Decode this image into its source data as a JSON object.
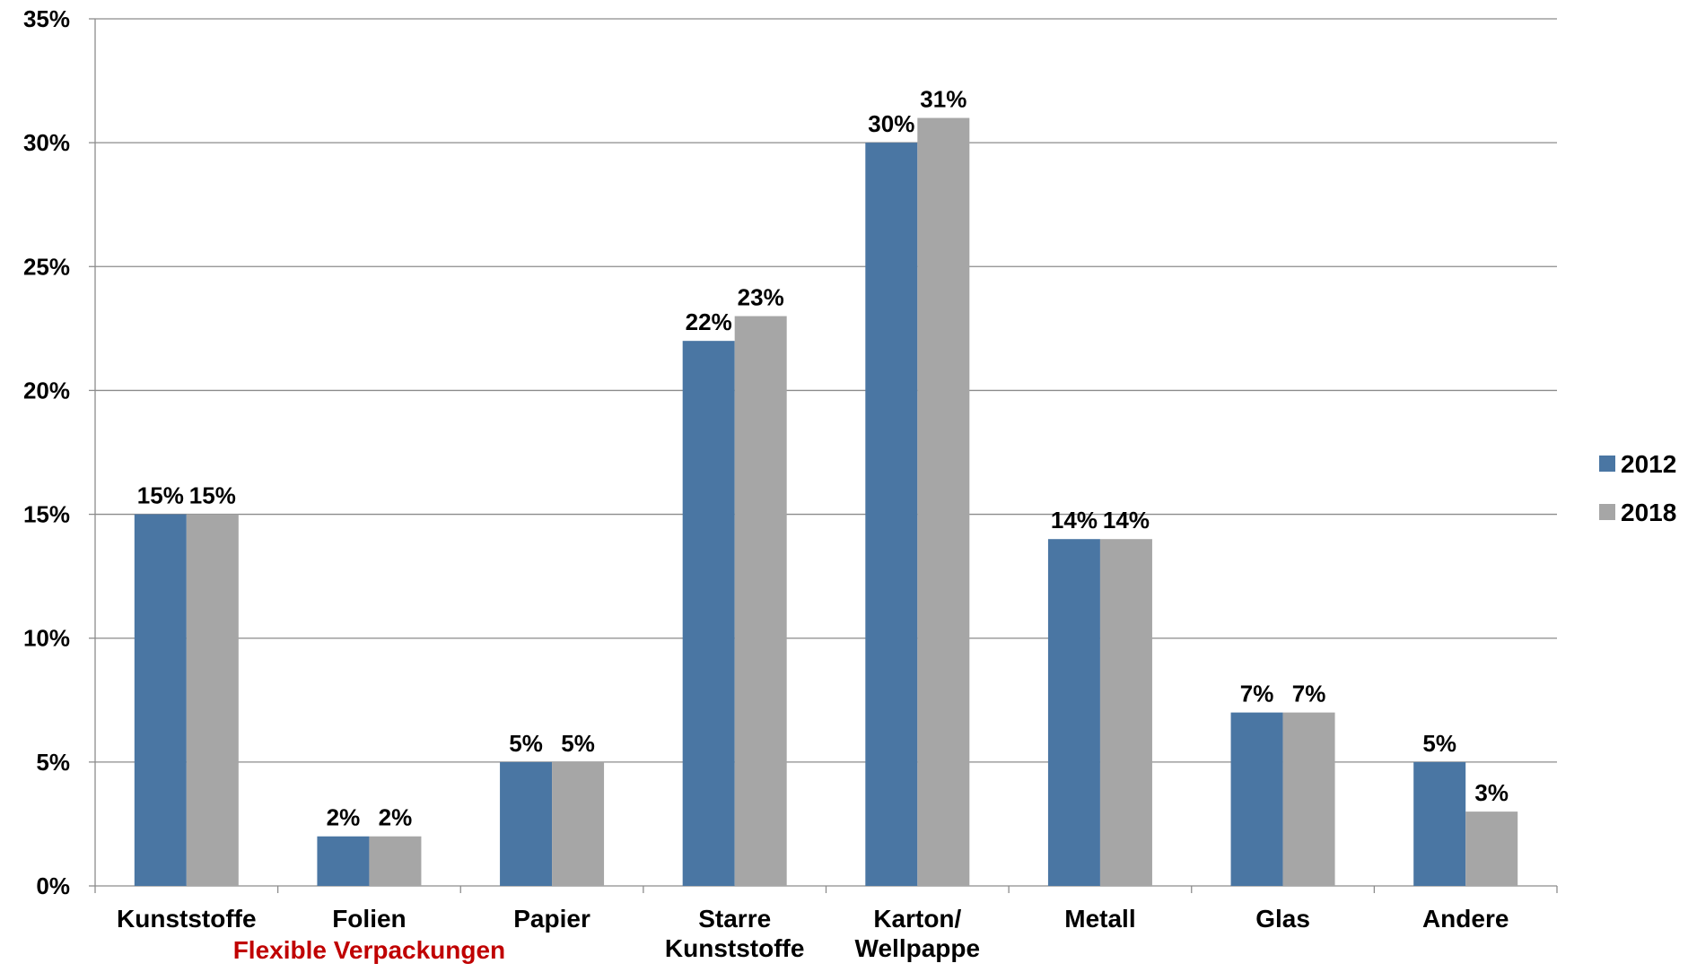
{
  "chart_data": {
    "type": "bar",
    "categories": [
      [
        "Kunststoffe"
      ],
      [
        "Folien"
      ],
      [
        "Papier"
      ],
      [
        "Starre",
        "Kunststoffe"
      ],
      [
        "Karton/",
        "Wellpappe"
      ],
      [
        "Metall"
      ],
      [
        "Glas"
      ],
      [
        "Andere"
      ]
    ],
    "series": [
      {
        "name": "2012",
        "color": "#4A76A3",
        "values": [
          15,
          2,
          5,
          22,
          30,
          14,
          7,
          5
        ],
        "labels": [
          "15%",
          "2%",
          "5%",
          "22%",
          "30%",
          "14%",
          "7%",
          "5%"
        ]
      },
      {
        "name": "2018",
        "color": "#A6A6A6",
        "values": [
          15,
          2,
          5,
          23,
          31,
          14,
          7,
          3
        ],
        "labels": [
          "15%",
          "2%",
          "5%",
          "23%",
          "31%",
          "14%",
          "7%",
          "3%"
        ]
      }
    ],
    "ylim": [
      0,
      35
    ],
    "yticks": [
      0,
      5,
      10,
      15,
      20,
      25,
      30,
      35
    ],
    "ytick_labels": [
      "0%",
      "5%",
      "10%",
      "15%",
      "20%",
      "25%",
      "30%",
      "35%"
    ],
    "annotation": {
      "text": "Flexible Verpackungen",
      "color": "#C00000",
      "span_categories": [
        0,
        2
      ]
    },
    "grid": true,
    "legend_position": "right",
    "title": "",
    "xlabel": "",
    "ylabel": ""
  }
}
